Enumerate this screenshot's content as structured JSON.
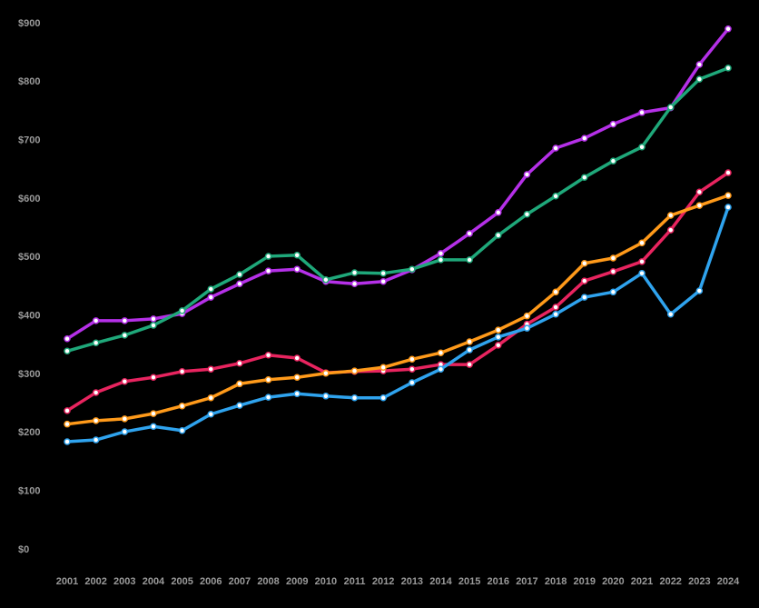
{
  "chart_data": {
    "type": "line",
    "x": [
      "2001",
      "2002",
      "2003",
      "2004",
      "2005",
      "2006",
      "2007",
      "2008",
      "2009",
      "2010",
      "2011",
      "2012",
      "2013",
      "2014",
      "2015",
      "2016",
      "2017",
      "2018",
      "2019",
      "2020",
      "2021",
      "2022",
      "2023",
      "2024"
    ],
    "ylim": [
      0,
      900
    ],
    "yticks": [
      {
        "value": 0,
        "label": "$0"
      },
      {
        "value": 100,
        "label": "$100"
      },
      {
        "value": 200,
        "label": "$200"
      },
      {
        "value": 300,
        "label": "$300"
      },
      {
        "value": 400,
        "label": "$400"
      },
      {
        "value": 500,
        "label": "$500"
      },
      {
        "value": 600,
        "label": "$600"
      },
      {
        "value": 700,
        "label": "$700"
      },
      {
        "value": 800,
        "label": "$800"
      },
      {
        "value": 900,
        "label": "$900"
      }
    ],
    "series": [
      {
        "color": "#b530e8",
        "values": [
          361,
          392,
          392,
          395,
          404,
          432,
          455,
          477,
          480,
          459,
          455,
          459,
          479,
          507,
          541,
          577,
          642,
          687,
          704,
          728,
          748,
          756,
          830,
          891
        ]
      },
      {
        "color": "#1fa87a",
        "values": [
          340,
          354,
          367,
          384,
          409,
          446,
          471,
          502,
          504,
          462,
          474,
          473,
          480,
          496,
          496,
          538,
          574,
          605,
          637,
          665,
          689,
          757,
          805,
          824
        ]
      },
      {
        "color": "#e8245f",
        "values": [
          238,
          269,
          288,
          295,
          305,
          309,
          319,
          333,
          328,
          303,
          305,
          306,
          309,
          317,
          317,
          350,
          386,
          415,
          460,
          476,
          493,
          547,
          612,
          645
        ]
      },
      {
        "color": "#ff9a1a",
        "values": [
          215,
          221,
          224,
          233,
          246,
          260,
          284,
          291,
          295,
          302,
          306,
          312,
          326,
          337,
          356,
          376,
          400,
          441,
          490,
          499,
          525,
          572,
          589,
          606
        ]
      },
      {
        "color": "#2fa3ee",
        "values": [
          185,
          188,
          202,
          211,
          204,
          232,
          247,
          261,
          267,
          263,
          260,
          260,
          286,
          309,
          342,
          364,
          379,
          403,
          432,
          441,
          473,
          403,
          443,
          586
        ]
      }
    ]
  }
}
